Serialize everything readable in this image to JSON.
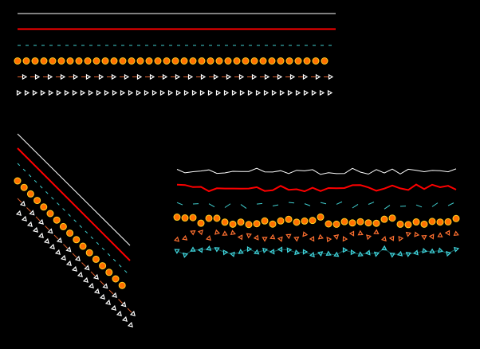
{
  "colors": {
    "background": "#000000",
    "solid_line": "#ffffff",
    "thick_line": "#ff0000",
    "dashed_line": "#40d0d0",
    "circle_fill": "#ff7000",
    "circle_stroke": "#ffd020",
    "arrow_line": "#e06030",
    "triangle": "#ffffff",
    "wave_triangle_orange": "#ff7030",
    "wave_triangle_cyan": "#40d8e0"
  },
  "panels": [
    "horizontal-lines",
    "diagonal-lines",
    "wavy-lines"
  ]
}
